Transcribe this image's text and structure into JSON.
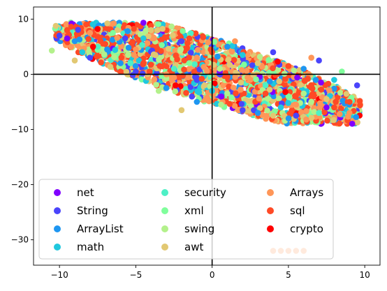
{
  "chart_data": {
    "type": "scatter",
    "title": "",
    "xlabel": "",
    "ylabel": "",
    "xlim": [
      -11.7,
      11.0
    ],
    "ylim": [
      -34.6,
      12.2
    ],
    "xticks": [
      -10,
      -5,
      0,
      5,
      10
    ],
    "yticks": [
      -30,
      -20,
      -10,
      0,
      10
    ],
    "xtick_labels": [
      "−10",
      "−5",
      "0",
      "5",
      "10"
    ],
    "ytick_labels": [
      "−30",
      "−20",
      "−10",
      "0",
      "10"
    ],
    "grid": false,
    "reference_lines": {
      "x": 0,
      "y": 0
    },
    "cluster_shape": "elongated cloud spanning x from about -10.5 to 10, tilted downward from about y 8 at left to about y -8 at right",
    "legend": {
      "location": "lower-left",
      "columns": 3,
      "entries": [
        {
          "name": "net",
          "color": "#8000ff"
        },
        {
          "name": "String",
          "color": "#4a44fb"
        },
        {
          "name": "ArrayList",
          "color": "#1e96f1"
        },
        {
          "name": "math",
          "color": "#20c8de"
        },
        {
          "name": "security",
          "color": "#4df0c6"
        },
        {
          "name": "xml",
          "color": "#80fe9c"
        },
        {
          "name": "swing",
          "color": "#b3f18b"
        },
        {
          "name": "awt",
          "color": "#e2c872"
        },
        {
          "name": "Arrays",
          "color": "#ff9658"
        },
        {
          "name": "sql",
          "color": "#ff4a26"
        },
        {
          "name": "crypto",
          "color": "#ff0000"
        }
      ]
    },
    "series": [
      {
        "name": "net",
        "color": "#8000ff",
        "points": [
          [
            -9.5,
            6.5
          ],
          [
            0.5,
            0.5
          ],
          [
            7.5,
            -6.0
          ]
        ]
      },
      {
        "name": "String",
        "color": "#4a44fb",
        "points": [
          [
            -10.0,
            7.0
          ],
          [
            -8.0,
            3.0
          ],
          [
            -5.0,
            0.5
          ],
          [
            -2.0,
            6.0
          ],
          [
            2.0,
            -6.5
          ],
          [
            5.5,
            -7.5
          ],
          [
            9.5,
            -2.0
          ],
          [
            4.0,
            4.0
          ],
          [
            7.0,
            2.5
          ]
        ]
      },
      {
        "name": "ArrayList",
        "color": "#1e96f1",
        "points": [
          [
            -9.0,
            6.0
          ],
          [
            -6.0,
            2.0
          ],
          [
            -3.0,
            -2.5
          ],
          [
            1.0,
            5.0
          ],
          [
            3.0,
            -7.0
          ],
          [
            6.0,
            1.0
          ],
          [
            9.0,
            -5.5
          ],
          [
            -1.0,
            -5.0
          ]
        ]
      },
      {
        "name": "math",
        "color": "#20c8de",
        "points": [
          [
            -8.5,
            4.0
          ],
          [
            -4.5,
            6.5
          ],
          [
            0.0,
            -3.0
          ],
          [
            4.5,
            -6.0
          ],
          [
            8.0,
            -1.0
          ],
          [
            2.0,
            3.5
          ]
        ]
      },
      {
        "name": "security",
        "color": "#4df0c6",
        "points": [
          [
            -7.5,
            5.0
          ],
          [
            -2.5,
            1.0
          ],
          [
            3.5,
            -2.0
          ],
          [
            7.0,
            -7.0
          ]
        ]
      },
      {
        "name": "xml",
        "color": "#80fe9c",
        "points": [
          [
            -6.5,
            7.5
          ],
          [
            -1.5,
            2.0
          ],
          [
            5.0,
            -4.0
          ],
          [
            8.5,
            0.5
          ]
        ]
      },
      {
        "name": "swing",
        "color": "#b3f18b",
        "points": [
          [
            -10.5,
            4.3
          ],
          [
            -5.5,
            3.5
          ],
          [
            0.5,
            1.0
          ],
          [
            6.0,
            -3.5
          ],
          [
            -3.5,
            -3.0
          ]
        ]
      },
      {
        "name": "awt",
        "color": "#e2c872",
        "points": [
          [
            -9.0,
            2.5
          ],
          [
            -4.0,
            8.0
          ],
          [
            -0.5,
            -2.0
          ],
          [
            3.0,
            2.0
          ],
          [
            7.5,
            -4.5
          ],
          [
            -2.0,
            -6.5
          ],
          [
            4.0,
            -7.5
          ]
        ]
      },
      {
        "name": "Arrays",
        "color": "#ff9658",
        "points": [
          [
            -8.0,
            7.5
          ],
          [
            -5.0,
            4.5
          ],
          [
            -1.0,
            3.0
          ],
          [
            2.5,
            -1.0
          ],
          [
            5.5,
            -5.5
          ],
          [
            9.0,
            -7.0
          ],
          [
            -3.0,
            0.0
          ],
          [
            1.5,
            6.0
          ],
          [
            6.5,
            3.0
          ],
          [
            4.0,
            -32.0
          ],
          [
            4.5,
            -32.0
          ],
          [
            5.0,
            -32.0
          ],
          [
            5.5,
            -32.0
          ],
          [
            6.0,
            -32.0
          ]
        ]
      },
      {
        "name": "sql",
        "color": "#ff4a26",
        "points": [
          [
            -9.5,
            8.0
          ],
          [
            -7.0,
            5.5
          ],
          [
            -4.5,
            2.0
          ],
          [
            -1.5,
            6.5
          ],
          [
            1.0,
            -0.5
          ],
          [
            3.5,
            -3.5
          ],
          [
            6.5,
            -2.0
          ],
          [
            8.0,
            -6.0
          ],
          [
            9.0,
            -5.0
          ],
          [
            -6.0,
            0.5
          ],
          [
            0.0,
            4.0
          ],
          [
            5.0,
            1.5
          ]
        ]
      },
      {
        "name": "crypto",
        "color": "#ff0000",
        "points": [
          [
            -7.5,
            8.2
          ],
          [
            -7.8,
            5.0
          ],
          [
            -2.4,
            -2.0
          ],
          [
            4.3,
            2.3
          ],
          [
            4.8,
            -3.2
          ]
        ]
      }
    ]
  }
}
